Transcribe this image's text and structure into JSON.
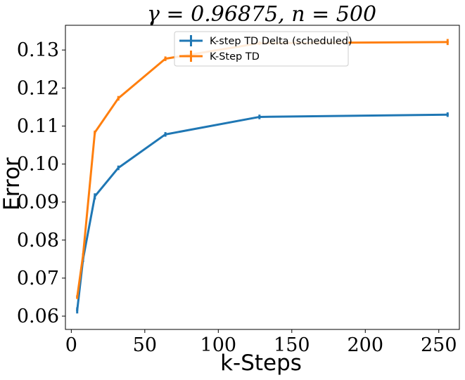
{
  "chart_data": {
    "type": "line",
    "title": "γ = 0.96875, n = 500",
    "xlabel": "k-Steps",
    "ylabel": "Error",
    "xlim": [
      -4,
      264
    ],
    "ylim": [
      0.0565,
      0.1365
    ],
    "xticks": [
      0,
      50,
      100,
      150,
      200,
      250
    ],
    "xtick_labels": [
      "0",
      "50",
      "100",
      "150",
      "200",
      "250"
    ],
    "yticks": [
      0.06,
      0.07,
      0.08,
      0.09,
      0.1,
      0.11,
      0.12,
      0.13
    ],
    "ytick_labels": [
      "0.06",
      "0.07",
      "0.08",
      "0.09",
      "0.10",
      "0.11",
      "0.12",
      "0.13"
    ],
    "grid": false,
    "legend_position": "top-center",
    "x": [
      4,
      8,
      16,
      32,
      64,
      128,
      256
    ],
    "series": [
      {
        "name": "K-step TD Delta (scheduled)",
        "color": "#1f77b4",
        "values": [
          0.0615,
          0.075,
          0.0915,
          0.099,
          0.1078,
          0.1124,
          0.113
        ],
        "errors": [
          0.0008,
          0.0008,
          0.0008,
          0.0006,
          0.0006,
          0.0006,
          0.0006
        ]
      },
      {
        "name": "K-Step TD",
        "color": "#ff7f0e",
        "values": [
          0.065,
          0.076,
          0.1083,
          0.1173,
          0.1277,
          0.1318,
          0.1321
        ],
        "errors": [
          0.0005,
          0.0005,
          0.0005,
          0.0006,
          0.0006,
          0.0005,
          0.0008
        ]
      }
    ]
  }
}
